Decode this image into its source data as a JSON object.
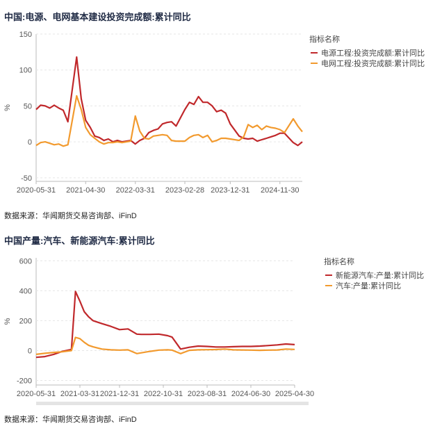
{
  "colors": {
    "series1": "#c0282b",
    "series2": "#f29a2e"
  },
  "chart_data": [
    {
      "type": "line",
      "title": "中国:电源、电网基本建设投资完成额:累计同比",
      "ylabel": "%",
      "ylim": [
        -55,
        150
      ],
      "yticks": [
        -50,
        0,
        50,
        100,
        150
      ],
      "xtick_labels": [
        "2020-05-31",
        "2021-04-30",
        "2022-03-31",
        "2023-02-28",
        "2023-12-31",
        "2024-11-30"
      ],
      "xtick_dates": [
        "2020-05-31",
        "2021-04-30",
        "2022-03-31",
        "2023-02-28",
        "2023-12-31",
        "2024-11-30"
      ],
      "legend_title": "指标名称",
      "legend_position": "right",
      "series": [
        {
          "name": "电源工程:投资完成额:累计同比",
          "color": "#c0282b",
          "x": [
            "2020-05-31",
            "2020-06-30",
            "2020-07-31",
            "2020-08-31",
            "2020-09-30",
            "2020-10-31",
            "2020-11-30",
            "2020-12-31",
            "2021-02-28",
            "2021-03-31",
            "2021-04-30",
            "2021-05-31",
            "2021-06-30",
            "2021-07-31",
            "2021-08-31",
            "2021-09-30",
            "2021-10-31",
            "2021-11-30",
            "2021-12-31",
            "2022-02-28",
            "2022-03-31",
            "2022-04-30",
            "2022-05-31",
            "2022-06-30",
            "2022-07-31",
            "2022-08-31",
            "2022-09-30",
            "2022-10-31",
            "2022-11-30",
            "2022-12-31",
            "2023-02-28",
            "2023-03-31",
            "2023-04-30",
            "2023-05-31",
            "2023-06-30",
            "2023-07-31",
            "2023-08-31",
            "2023-09-30",
            "2023-10-31",
            "2023-11-30",
            "2023-12-31",
            "2024-02-29",
            "2024-03-31",
            "2024-04-30",
            "2024-05-31",
            "2024-06-30",
            "2024-07-31",
            "2024-08-31",
            "2024-09-30",
            "2024-10-31",
            "2024-11-30",
            "2024-12-31",
            "2025-02-28",
            "2025-03-31",
            "2025-04-30"
          ],
          "y": [
            45,
            51,
            50,
            47,
            51,
            47,
            44,
            28,
            118,
            60,
            30,
            20,
            8,
            6,
            2,
            4,
            0,
            2,
            0,
            2,
            -3,
            2,
            5,
            13,
            16,
            18,
            25,
            27,
            28,
            22,
            45,
            55,
            52,
            63,
            55,
            55,
            50,
            42,
            44,
            40,
            25,
            8,
            5,
            4,
            5,
            1,
            3,
            5,
            7,
            9,
            12,
            12,
            -1,
            -5,
            0
          ]
        },
        {
          "name": "电网工程:投资完成额:累计同比",
          "color": "#f29a2e",
          "x": [
            "2020-05-31",
            "2020-06-30",
            "2020-07-31",
            "2020-08-31",
            "2020-09-30",
            "2020-10-31",
            "2020-11-30",
            "2020-12-31",
            "2021-02-28",
            "2021-03-31",
            "2021-04-30",
            "2021-05-31",
            "2021-06-30",
            "2021-07-31",
            "2021-08-31",
            "2021-09-30",
            "2021-10-31",
            "2021-11-30",
            "2021-12-31",
            "2022-02-28",
            "2022-03-31",
            "2022-04-30",
            "2022-05-31",
            "2022-06-30",
            "2022-07-31",
            "2022-08-31",
            "2022-09-30",
            "2022-10-31",
            "2022-11-30",
            "2022-12-31",
            "2023-02-28",
            "2023-03-31",
            "2023-04-30",
            "2023-05-31",
            "2023-06-30",
            "2023-07-31",
            "2023-08-31",
            "2023-09-30",
            "2023-10-31",
            "2023-11-30",
            "2023-12-31",
            "2024-02-29",
            "2024-03-31",
            "2024-04-30",
            "2024-05-31",
            "2024-06-30",
            "2024-07-31",
            "2024-08-31",
            "2024-09-30",
            "2024-10-31",
            "2024-11-30",
            "2024-12-31",
            "2025-02-28",
            "2025-03-31",
            "2025-04-30"
          ],
          "y": [
            -5,
            -1,
            0,
            -2,
            -4,
            -3,
            -6,
            -4,
            64,
            45,
            20,
            10,
            5,
            0,
            -3,
            -1,
            -1,
            0,
            -1,
            1,
            36,
            15,
            5,
            4,
            8,
            9,
            10,
            9,
            2,
            1,
            1,
            6,
            9,
            10,
            6,
            9,
            0,
            2,
            5,
            5,
            4,
            2,
            7,
            24,
            20,
            23,
            17,
            22,
            20,
            19,
            17,
            13,
            32,
            22,
            14
          ]
        }
      ]
    },
    {
      "type": "line",
      "title": "中国产量:汽车、新能源汽车:累计同比",
      "ylabel": "%",
      "ylim": [
        -230,
        620
      ],
      "yticks": [
        -200,
        0,
        200,
        400,
        600
      ],
      "xtick_labels": [
        "2020-05-31",
        "2021-03-31",
        "2021-12-31",
        "2022-10-31",
        "2023-08-31",
        "2024-06-30",
        "2025-04-30"
      ],
      "xtick_dates": [
        "2020-05-31",
        "2021-03-31",
        "2021-12-31",
        "2022-10-31",
        "2023-08-31",
        "2024-06-30",
        "2025-04-30"
      ],
      "legend_title": "指标名称",
      "legend_position": "right",
      "series": [
        {
          "name": "新能源汽车:产量:累计同比",
          "color": "#c0282b",
          "x": [
            "2020-05-31",
            "2020-07-31",
            "2020-09-30",
            "2020-11-30",
            "2021-01-31",
            "2021-02-28",
            "2021-03-31",
            "2021-04-30",
            "2021-05-31",
            "2021-06-30",
            "2021-08-31",
            "2021-10-31",
            "2021-12-31",
            "2022-02-28",
            "2022-04-30",
            "2022-05-31",
            "2022-07-31",
            "2022-09-30",
            "2022-11-30",
            "2022-12-31",
            "2023-02-28",
            "2023-04-30",
            "2023-06-30",
            "2023-08-31",
            "2023-10-31",
            "2023-12-31",
            "2024-02-29",
            "2024-04-30",
            "2024-06-30",
            "2024-08-31",
            "2024-10-31",
            "2024-12-31",
            "2025-02-28",
            "2025-04-30"
          ],
          "y": [
            -45,
            -40,
            -25,
            -5,
            8,
            395,
            330,
            260,
            225,
            200,
            180,
            162,
            140,
            145,
            110,
            108,
            108,
            110,
            100,
            90,
            10,
            22,
            30,
            28,
            24,
            24,
            26,
            28,
            28,
            30,
            34,
            38,
            44,
            40
          ]
        },
        {
          "name": "汽车:产量:累计同比",
          "color": "#f29a2e",
          "x": [
            "2020-05-31",
            "2020-07-31",
            "2020-09-30",
            "2020-11-30",
            "2021-01-31",
            "2021-02-28",
            "2021-03-31",
            "2021-04-30",
            "2021-05-31",
            "2021-06-30",
            "2021-08-31",
            "2021-10-31",
            "2021-12-31",
            "2022-02-28",
            "2022-04-30",
            "2022-05-31",
            "2022-07-31",
            "2022-09-30",
            "2022-11-30",
            "2022-12-31",
            "2023-02-28",
            "2023-04-30",
            "2023-06-30",
            "2023-08-31",
            "2023-10-31",
            "2023-12-31",
            "2024-02-29",
            "2024-04-30",
            "2024-06-30",
            "2024-08-31",
            "2024-10-31",
            "2024-12-31",
            "2025-02-28",
            "2025-04-30"
          ],
          "y": [
            -25,
            -18,
            -12,
            -8,
            0,
            88,
            80,
            55,
            35,
            25,
            10,
            5,
            3,
            5,
            -20,
            -15,
            -5,
            3,
            5,
            3,
            -20,
            2,
            5,
            6,
            7,
            10,
            5,
            4,
            3,
            2,
            3,
            4,
            10,
            8
          ]
        }
      ]
    }
  ],
  "panels": [
    {
      "source": "数据来源：华闻期货交易咨询部、iFinD"
    },
    {
      "source": "数据来源：华闻期货交易咨询部、iFinD"
    }
  ]
}
